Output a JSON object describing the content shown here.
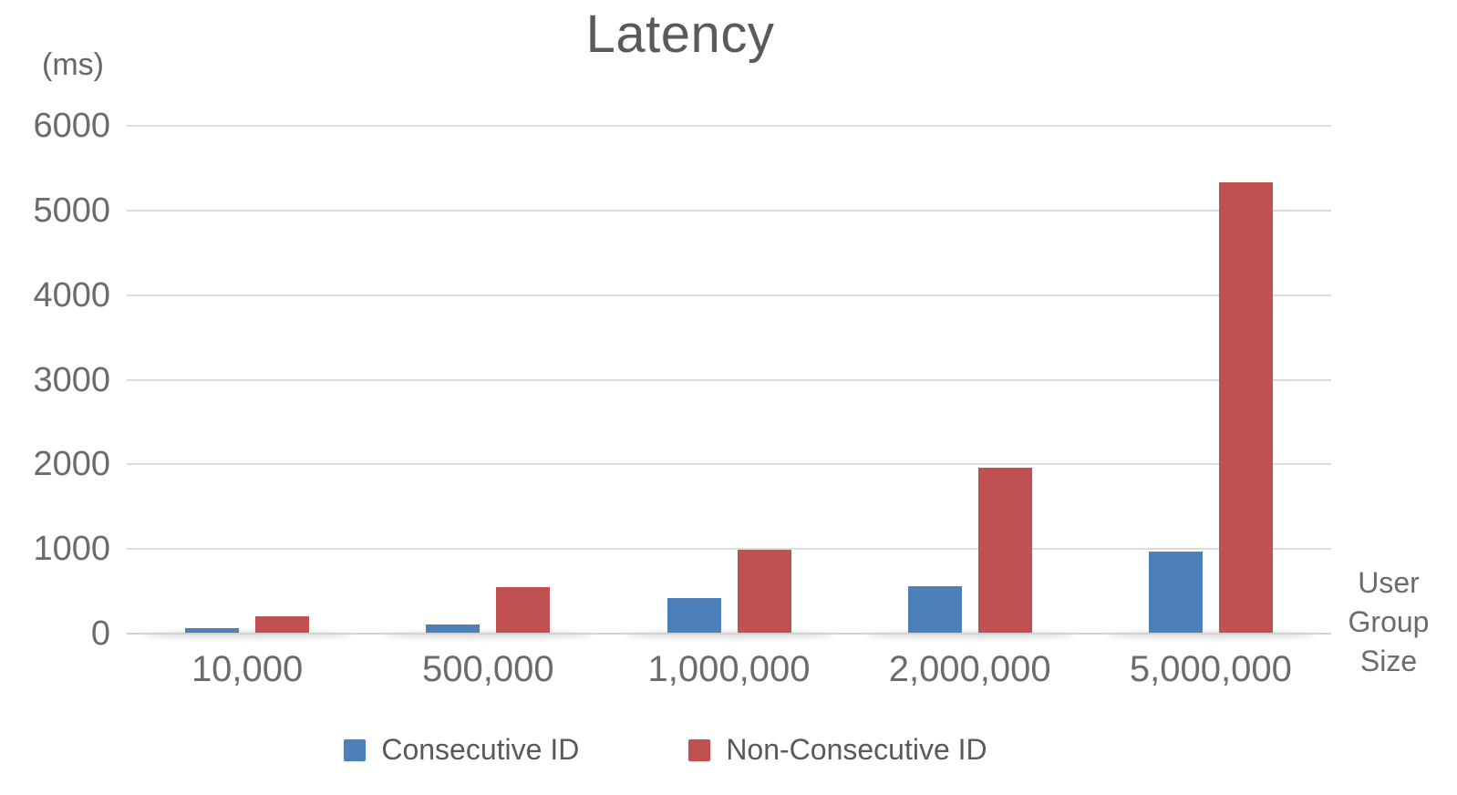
{
  "chart_data": {
    "type": "bar",
    "title": "Latency",
    "y_unit_label": "(ms)",
    "x_axis_label": "User Group Size",
    "categories": [
      "10,000",
      "500,000",
      "1,000,000",
      "2,000,000",
      "5,000,000"
    ],
    "series": [
      {
        "name": "Consecutive ID",
        "color": "#4d80b9",
        "values": [
          60,
          110,
          420,
          565,
          975
        ]
      },
      {
        "name": "Non-Consecutive ID",
        "color": "#c05150",
        "values": [
          200,
          545,
          990,
          1960,
          5330
        ]
      }
    ],
    "ylim": [
      0,
      6000
    ],
    "yticks": [
      0,
      1000,
      2000,
      3000,
      4000,
      5000,
      6000
    ],
    "grid": true,
    "legend_position": "bottom"
  },
  "colors": {
    "background": "#ffffff",
    "gridline": "#dcdcdc",
    "axis_line": "#d2d2d2",
    "title_text": "#5a5a5a",
    "tick_text": "#6b6b6b",
    "legend_text": "#595959",
    "series_blue": "#4d80b9",
    "series_red": "#c05150"
  }
}
